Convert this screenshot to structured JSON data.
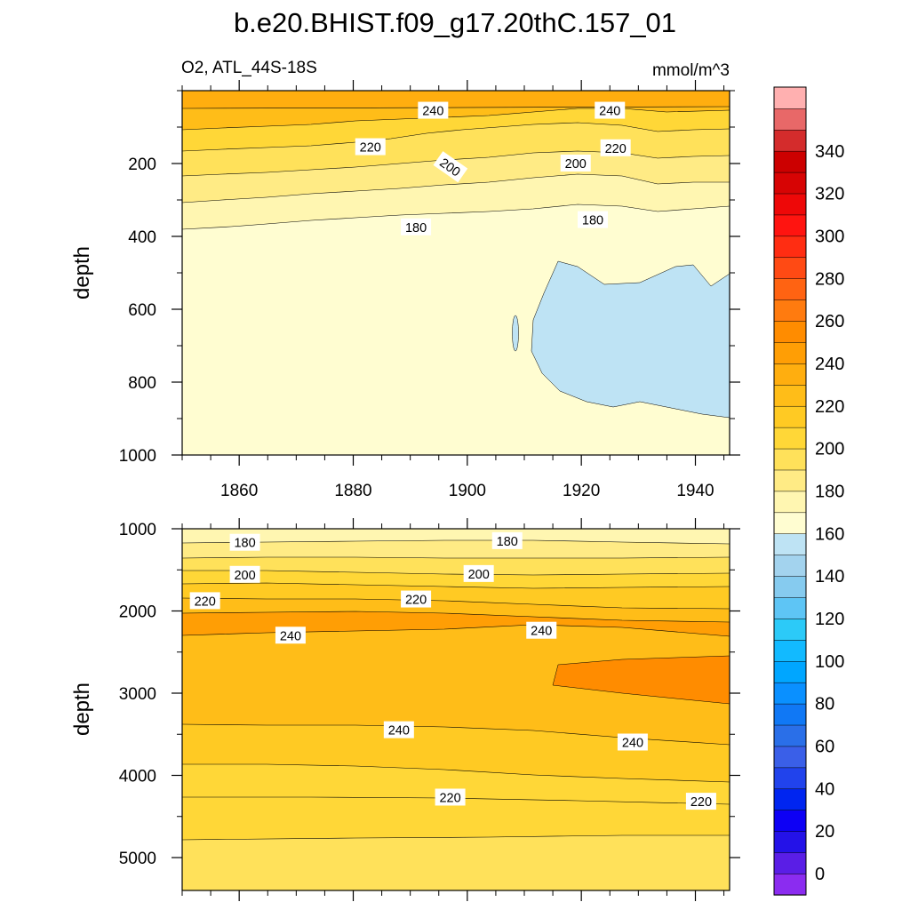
{
  "title": "b.e20.BHIST.f09_g17.20thC.157_01",
  "chart_data": {
    "type": "contour",
    "variable_label": "O2, ATL_44S-18S",
    "units": "mmol/m^3",
    "x_range": [
      1850,
      1946
    ],
    "x_ticks": [
      "1860",
      "1880",
      "1900",
      "1920",
      "1940"
    ],
    "panels": [
      {
        "name": "upper",
        "ylabel": "depth",
        "ylim": [
          0,
          1000
        ],
        "y_ticks": [
          "200",
          "400",
          "600",
          "800",
          "1000"
        ],
        "labels": [
          {
            "text": "240",
            "x": 1894,
            "y": 55
          },
          {
            "text": "240",
            "x": 1925,
            "y": 55
          },
          {
            "text": "220",
            "x": 1883,
            "y": 155
          },
          {
            "text": "220",
            "x": 1926,
            "y": 158
          },
          {
            "text": "200",
            "x": 1897,
            "y": 210,
            "rot": 35
          },
          {
            "text": "200",
            "x": 1919,
            "y": 200
          },
          {
            "text": "180",
            "x": 1891,
            "y": 375
          },
          {
            "text": "180",
            "x": 1922,
            "y": 355
          }
        ]
      },
      {
        "name": "lower",
        "ylabel": "depth",
        "ylim": [
          1000,
          5400
        ],
        "y_ticks": [
          "1000",
          "2000",
          "3000",
          "4000",
          "5000"
        ],
        "labels": [
          {
            "text": "180",
            "x": 1861,
            "y": 1170
          },
          {
            "text": "180",
            "x": 1907,
            "y": 1150
          },
          {
            "text": "200",
            "x": 1861,
            "y": 1560
          },
          {
            "text": "200",
            "x": 1902,
            "y": 1550
          },
          {
            "text": "220",
            "x": 1854,
            "y": 1880
          },
          {
            "text": "220",
            "x": 1891,
            "y": 1860
          },
          {
            "text": "240",
            "x": 1869,
            "y": 2300
          },
          {
            "text": "240",
            "x": 1913,
            "y": 2240
          },
          {
            "text": "240",
            "x": 1888,
            "y": 3450
          },
          {
            "text": "240",
            "x": 1929,
            "y": 3600
          },
          {
            "text": "220",
            "x": 1897,
            "y": 4270
          },
          {
            "text": "220",
            "x": 1941,
            "y": 4320
          }
        ]
      }
    ],
    "colorbar": {
      "colors": [
        "#8b2cf0",
        "#5a1ee6",
        "#2412e8",
        "#0d00f5",
        "#0025f0",
        "#2143ec",
        "#3a5fe8",
        "#2a6fe8",
        "#1078f5",
        "#0a90ff",
        "#00a6ff",
        "#12baff",
        "#2ccaf8",
        "#5ec5f5",
        "#86cbef",
        "#a3d3ee",
        "#bee3f4",
        "#fffdd1",
        "#fff6b1",
        "#ffeb85",
        "#ffe15a",
        "#ffd737",
        "#ffca23",
        "#ffbd18",
        "#ffae0f",
        "#ff9e05",
        "#ff8c00",
        "#ff7b0f",
        "#ff6312",
        "#ff4a14",
        "#ff2d12",
        "#ff1410",
        "#ee0808",
        "#d70404",
        "#cc0000",
        "#d42c2c",
        "#e86868",
        "#ffb0b0"
      ],
      "tick_labels": [
        "0",
        "20",
        "40",
        "60",
        "80",
        "100",
        "120",
        "140",
        "160",
        "180",
        "200",
        "220",
        "240",
        "260",
        "280",
        "300",
        "320",
        "340"
      ]
    }
  }
}
